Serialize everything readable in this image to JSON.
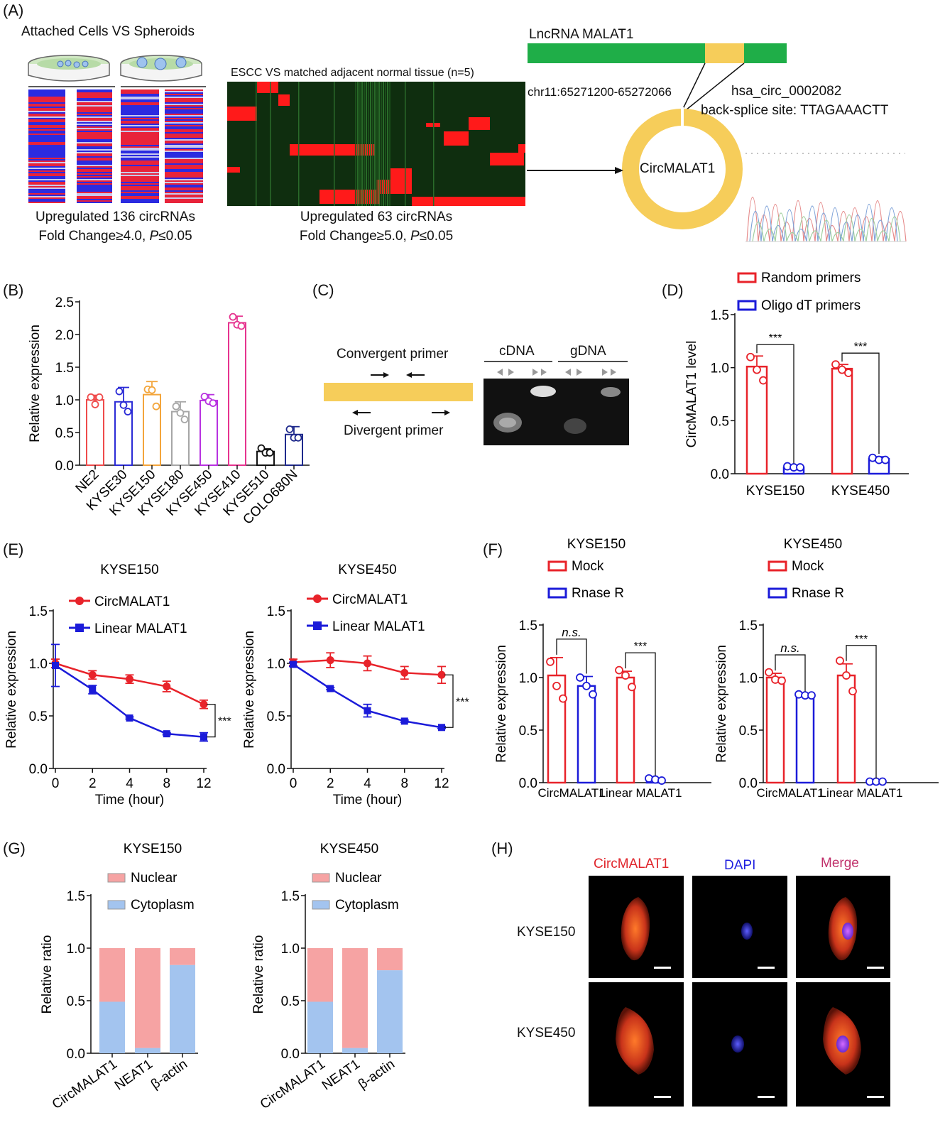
{
  "panel_labels": {
    "A": "(A)",
    "B": "(B)",
    "C": "(C)",
    "D": "(D)",
    "E": "(E)",
    "F": "(F)",
    "G": "(G)",
    "H": "(H)"
  },
  "panel_a": {
    "left_title": "Attached Cells VS Spheroids",
    "left_caption1": "Upregulated 136 circRNAs",
    "left_caption2_pre": "Fold Change≥4.0, ",
    "left_caption2_p": "P",
    "left_caption2_post": "≤0.05",
    "mid_title": "ESCC VS matched adjacent normal tissue (n=5)",
    "mid_caption1": "Upregulated 63 circRNAs",
    "mid_caption2_pre": "Fold Change≥5.0, ",
    "mid_caption2_p": "P",
    "mid_caption2_post": "≤0.05",
    "lnc_label": "LncRNA MALAT1",
    "coords": "chr11:65271200-65272066",
    "circ_id": "hsa_circ_0002082",
    "backsplice": "back-splice site: TTAGAAACTT",
    "circ_name": "CircMALAT1",
    "colors": {
      "green": "#1fae48",
      "yellow": "#f6cd5a",
      "heat_red": "#ff1a1a",
      "heat_bg": "#0f2e0f",
      "blue": "#2a2aff"
    }
  },
  "panel_c": {
    "convergent": "Convergent primer",
    "divergent": "Divergent primer",
    "cdna": "cDNA",
    "gdna": "gDNA"
  },
  "panel_h": {
    "col1": "CircMALAT1",
    "col2": "DAPI",
    "col3": "Merge",
    "row1": "KYSE150",
    "row2": "KYSE450"
  },
  "chart_data": [
    {
      "id": "B",
      "type": "bar",
      "ylabel": "Relative expression",
      "ylim": [
        0,
        2.5
      ],
      "yticks": [
        "0.0",
        "0.5",
        "1.0",
        "1.5",
        "2.0",
        "2.5"
      ],
      "categories": [
        "NE2",
        "KYSE30",
        "KYSE150",
        "KYSE180",
        "KYSE450",
        "KYSE410",
        "KYSE510",
        "COLO680N"
      ],
      "values": [
        1.0,
        0.97,
        1.08,
        0.82,
        0.99,
        2.18,
        0.21,
        0.47
      ],
      "errors": [
        0.07,
        0.22,
        0.2,
        0.15,
        0.09,
        0.1,
        0.04,
        0.12
      ],
      "points": [
        [
          1.04,
          0.93,
          1.04
        ],
        [
          1.13,
          0.92,
          0.82
        ],
        [
          1.16,
          1.15,
          0.9
        ],
        [
          0.9,
          0.8,
          0.7
        ],
        [
          1.05,
          0.98,
          0.95
        ],
        [
          2.27,
          2.15,
          2.13
        ],
        [
          0.26,
          0.19,
          0.19
        ],
        [
          0.55,
          0.42,
          0.42
        ]
      ],
      "colors": [
        "#ef4b4b",
        "#2b2bd6",
        "#f3a53b",
        "#a6a6a6",
        "#b832e0",
        "#e6348f",
        "#111111",
        "#1f2a8c"
      ]
    },
    {
      "id": "D",
      "type": "bar",
      "ylabel": "CircMALAT1 level",
      "ylim": [
        0,
        1.5
      ],
      "yticks": [
        "0.0",
        "0.5",
        "1.0",
        "1.5"
      ],
      "categories": [
        "KYSE150",
        "KYSE450"
      ],
      "series": [
        {
          "name": "Random primers",
          "values": [
            1.01,
            0.99
          ],
          "errors": [
            0.1,
            0.04
          ],
          "points": [
            [
              1.1,
              0.98,
              0.88
            ],
            [
              1.03,
              0.98,
              0.95
            ]
          ],
          "color": "#e8232a"
        },
        {
          "name": "Oligo dT primers",
          "values": [
            0.06,
            0.14
          ],
          "errors": [
            0.01,
            0.02
          ],
          "points": [
            [
              0.07,
              0.06,
              0.06
            ],
            [
              0.15,
              0.13,
              0.13
            ]
          ],
          "color": "#1b1bd9"
        }
      ],
      "significance": [
        "***",
        "***"
      ]
    },
    {
      "id": "E1",
      "type": "line",
      "title": "KYSE150",
      "xlabel": "Time (hour)",
      "ylabel": "Relative expression",
      "ylim": [
        0,
        1.5
      ],
      "yticks": [
        "0.0",
        "0.5",
        "1.0",
        "1.5"
      ],
      "x": [
        0,
        2,
        4,
        8,
        12
      ],
      "xticks": [
        "0",
        "2",
        "4",
        "8",
        "12"
      ],
      "series": [
        {
          "name": "CircMALAT1",
          "values": [
            1.0,
            0.89,
            0.85,
            0.78,
            0.61
          ],
          "errors": [
            0.04,
            0.04,
            0.04,
            0.05,
            0.04
          ],
          "color": "#e8232a"
        },
        {
          "name": "Linear MALAT1",
          "values": [
            0.98,
            0.75,
            0.48,
            0.33,
            0.3
          ],
          "errors": [
            0.2,
            0.04,
            0.01,
            0.01,
            0.04
          ],
          "color": "#1b1bd9"
        }
      ],
      "significance": "***"
    },
    {
      "id": "E2",
      "type": "line",
      "title": "KYSE450",
      "xlabel": "Time (hour)",
      "ylabel": "Relative expression",
      "ylim": [
        0,
        1.5
      ],
      "yticks": [
        "0.0",
        "0.5",
        "1.0",
        "1.5"
      ],
      "x": [
        0,
        2,
        4,
        8,
        12
      ],
      "xticks": [
        "0",
        "2",
        "4",
        "8",
        "12"
      ],
      "series": [
        {
          "name": "CircMALAT1",
          "values": [
            1.01,
            1.03,
            1.0,
            0.91,
            0.89
          ],
          "errors": [
            0.03,
            0.07,
            0.07,
            0.06,
            0.08
          ],
          "color": "#e8232a"
        },
        {
          "name": "Linear MALAT1",
          "values": [
            0.99,
            0.76,
            0.55,
            0.45,
            0.39
          ],
          "errors": [
            0.02,
            0.01,
            0.06,
            0.01,
            0.01
          ],
          "color": "#1b1bd9"
        }
      ],
      "significance": "***"
    },
    {
      "id": "F1",
      "type": "bar",
      "title": "KYSE150",
      "ylabel": "Relative expression",
      "ylim": [
        0,
        1.5
      ],
      "yticks": [
        "0.0",
        "0.5",
        "1.0",
        "1.5"
      ],
      "categories": [
        "CircMALAT1",
        "Linear MALAT1"
      ],
      "series": [
        {
          "name": "Mock",
          "values": [
            1.02,
            1.0
          ],
          "errors": [
            0.17,
            0.06
          ],
          "points": [
            [
              1.15,
              0.92,
              0.8
            ],
            [
              1.07,
              1.02,
              0.91
            ]
          ],
          "color": "#e8232a"
        },
        {
          "name": "Rnase R",
          "values": [
            0.92,
            0.03
          ],
          "errors": [
            0.09,
            0.01
          ],
          "points": [
            [
              1.0,
              0.92,
              0.84
            ],
            [
              0.04,
              0.03,
              0.02
            ]
          ],
          "color": "#1b1bd9"
        }
      ],
      "significance": [
        "n.s.",
        "***"
      ]
    },
    {
      "id": "F2",
      "type": "bar",
      "title": "KYSE450",
      "ylabel": "Relative expression",
      "ylim": [
        0,
        1.5
      ],
      "yticks": [
        "0.0",
        "0.5",
        "1.0",
        "1.5"
      ],
      "categories": [
        "CircMALAT1",
        "Linear MALAT1"
      ],
      "series": [
        {
          "name": "Mock",
          "values": [
            1.0,
            1.02
          ],
          "errors": [
            0.04,
            0.11
          ],
          "points": [
            [
              1.05,
              0.98,
              0.97
            ],
            [
              1.16,
              1.02,
              0.87
            ]
          ],
          "color": "#e8232a"
        },
        {
          "name": "Rnase R",
          "values": [
            0.83,
            0.01
          ],
          "errors": [
            0.01,
            0.0
          ],
          "points": [
            [
              0.84,
              0.83,
              0.83
            ],
            [
              0.01,
              0.01,
              0.01
            ]
          ],
          "color": "#1b1bd9"
        }
      ],
      "significance": [
        "n.s.",
        "***"
      ]
    },
    {
      "id": "G1",
      "type": "bar",
      "title": "KYSE150",
      "ylabel": "Relative ratio",
      "ylim": [
        0,
        1.5
      ],
      "yticks": [
        "0.0",
        "0.5",
        "1.0",
        "1.5"
      ],
      "categories": [
        "CircMALAT1",
        "NEAT1",
        "β-actin"
      ],
      "series": [
        {
          "name": "Nuclear",
          "values": [
            0.51,
            0.95,
            0.16
          ],
          "color": "#f6a3a3"
        },
        {
          "name": "Cytoplasm",
          "values": [
            0.49,
            0.05,
            0.84
          ],
          "color": "#a3c4ef"
        }
      ]
    },
    {
      "id": "G2",
      "type": "bar",
      "title": "KYSE450",
      "ylabel": "Relative ratio",
      "ylim": [
        0,
        1.5
      ],
      "yticks": [
        "0.0",
        "0.5",
        "1.0",
        "1.5"
      ],
      "categories": [
        "CircMALAT1",
        "NEAT1",
        "β-actin"
      ],
      "series": [
        {
          "name": "Nuclear",
          "values": [
            0.51,
            0.95,
            0.21
          ],
          "color": "#f6a3a3"
        },
        {
          "name": "Cytoplasm",
          "values": [
            0.49,
            0.05,
            0.79
          ],
          "color": "#a3c4ef"
        }
      ]
    }
  ]
}
